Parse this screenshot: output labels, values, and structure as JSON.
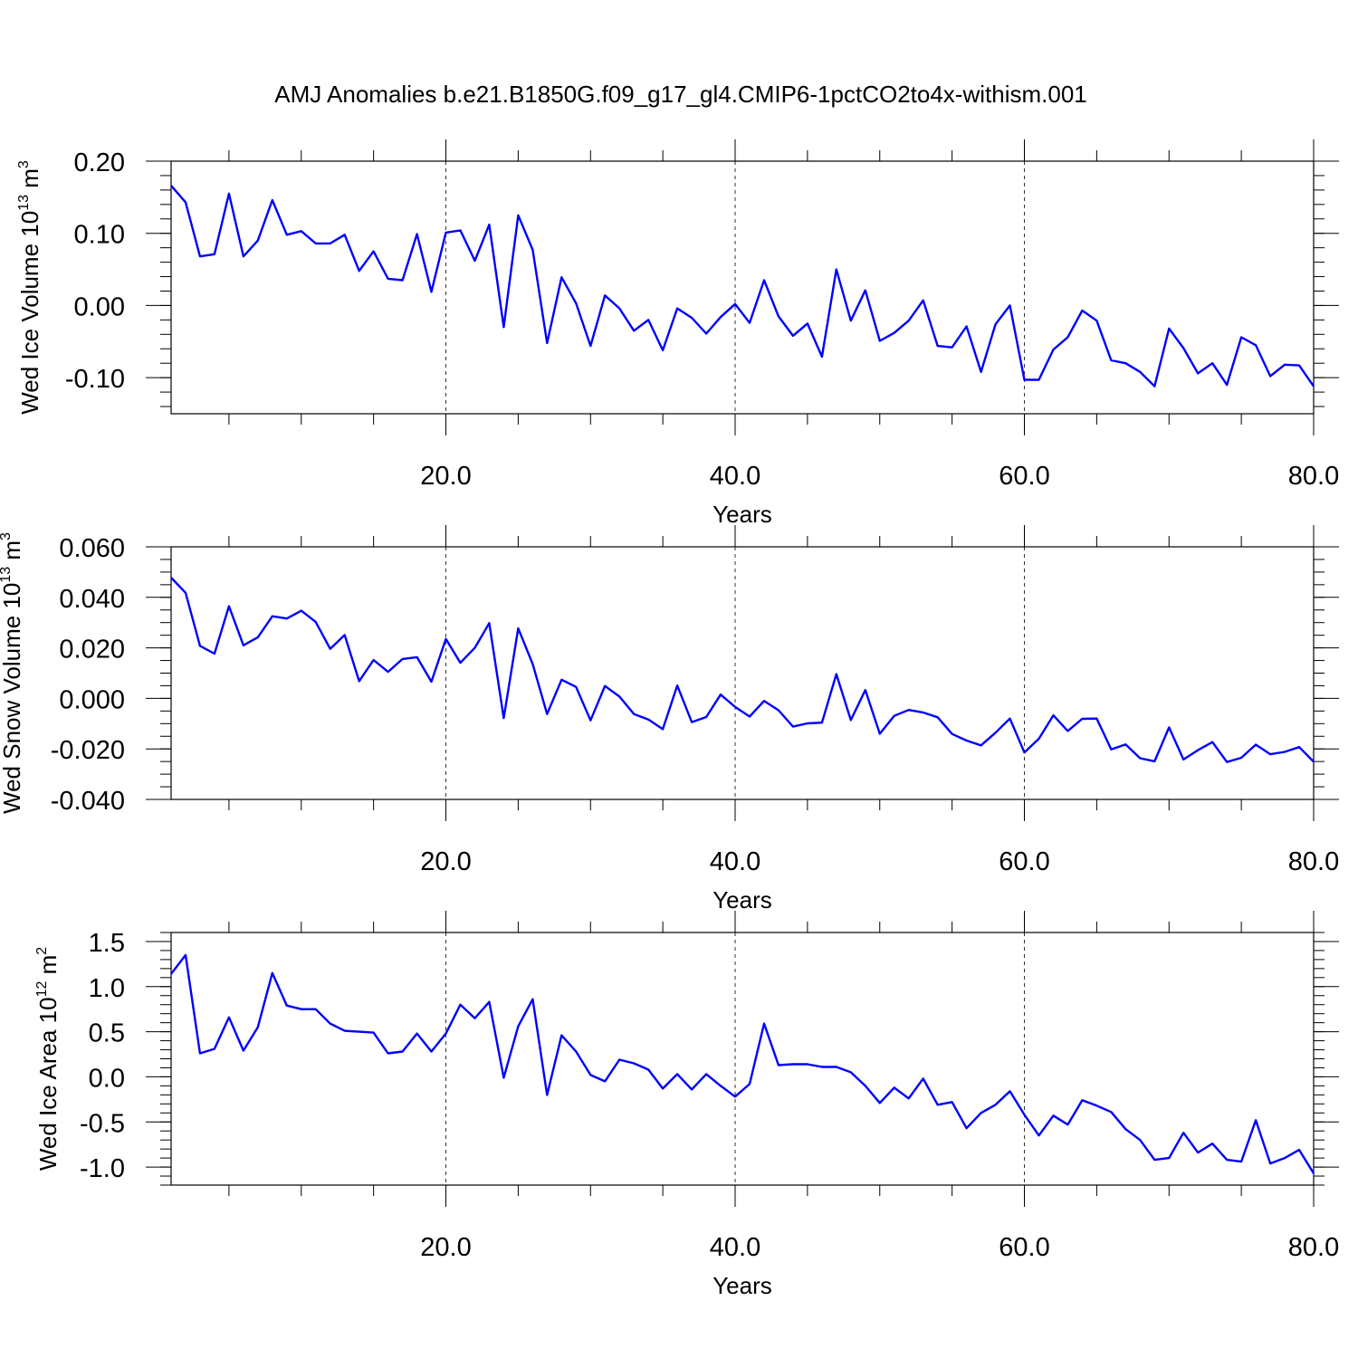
{
  "title": "AMJ Anomalies b.e21.B1850G.f09_g17_gl4.CMIP6-1pctCO2to4x-withism.001",
  "chart_data": [
    {
      "type": "line",
      "ylabel_main": "Wed Ice Volume 10",
      "ylabel_exp": "13",
      "ylabel_unit": " m",
      "ylabel_unit_exp": "3",
      "xlabel": "Years",
      "xlim": [
        1,
        80
      ],
      "ylim": [
        -0.15,
        0.2
      ],
      "xticks": [
        20,
        40,
        60,
        80
      ],
      "xtick_labels": [
        "20.0",
        "40.0",
        "60.0",
        "80.0"
      ],
      "yticks": [
        0.2,
        0.1,
        0.0,
        -0.1
      ],
      "ytick_labels": [
        "0.20",
        "0.10",
        "0.00",
        "-0.10"
      ],
      "yminor_step": 0.02,
      "grid": "dashed vertical at major x ticks",
      "series": [
        {
          "color": "#0000ff",
          "x": [
            1,
            2,
            3,
            4,
            5,
            6,
            7,
            8,
            9,
            10,
            11,
            12,
            13,
            14,
            15,
            16,
            17,
            18,
            19,
            20,
            21,
            22,
            23,
            24,
            25,
            26,
            27,
            28,
            29,
            30,
            31,
            32,
            33,
            34,
            35,
            36,
            37,
            38,
            39,
            40,
            41,
            42,
            43,
            44,
            45,
            46,
            47,
            48,
            49,
            50,
            51,
            52,
            53,
            54,
            55,
            56,
            57,
            58,
            59,
            60,
            61,
            62,
            63,
            64,
            65,
            66,
            67,
            68,
            69,
            70,
            71,
            72,
            73,
            74,
            75,
            76,
            77,
            78,
            79,
            80
          ],
          "values": [
            0.166,
            0.143,
            0.068,
            0.071,
            0.155,
            0.068,
            0.09,
            0.146,
            0.098,
            0.103,
            0.086,
            0.086,
            0.098,
            0.048,
            0.075,
            0.037,
            0.035,
            0.099,
            0.019,
            0.101,
            0.104,
            0.062,
            0.112,
            -0.03,
            0.125,
            0.077,
            -0.052,
            0.039,
            0.003,
            -0.056,
            0.014,
            -0.004,
            -0.035,
            -0.02,
            -0.062,
            -0.004,
            -0.017,
            -0.039,
            -0.016,
            0.002,
            -0.024,
            0.035,
            -0.015,
            -0.042,
            -0.025,
            -0.071,
            0.05,
            -0.021,
            0.021,
            -0.049,
            -0.038,
            -0.021,
            0.007,
            -0.056,
            -0.058,
            -0.029,
            -0.092,
            -0.026,
            0.0,
            -0.103,
            -0.103,
            -0.061,
            -0.044,
            -0.007,
            -0.021,
            -0.076,
            -0.08,
            -0.092,
            -0.112,
            -0.032,
            -0.059,
            -0.094,
            -0.08,
            -0.11,
            -0.044,
            -0.055,
            -0.098,
            -0.082,
            -0.083,
            -0.112
          ]
        }
      ]
    },
    {
      "type": "line",
      "ylabel_main": "Wed Snow Volume 10",
      "ylabel_exp": "13",
      "ylabel_unit": " m",
      "ylabel_unit_exp": "3",
      "xlabel": "Years",
      "xlim": [
        1,
        80
      ],
      "ylim": [
        -0.04,
        0.06
      ],
      "xticks": [
        20,
        40,
        60,
        80
      ],
      "xtick_labels": [
        "20.0",
        "40.0",
        "60.0",
        "80.0"
      ],
      "yticks": [
        0.06,
        0.04,
        0.02,
        0.0,
        -0.02,
        -0.04
      ],
      "ytick_labels": [
        "0.060",
        "0.040",
        "0.020",
        "0.000",
        "-0.020",
        "-0.040"
      ],
      "yminor_step": 0.005,
      "grid": "dashed vertical at major x ticks",
      "series": [
        {
          "color": "#0000ff",
          "x": [
            1,
            2,
            3,
            4,
            5,
            6,
            7,
            8,
            9,
            10,
            11,
            12,
            13,
            14,
            15,
            16,
            17,
            18,
            19,
            20,
            21,
            22,
            23,
            24,
            25,
            26,
            27,
            28,
            29,
            30,
            31,
            32,
            33,
            34,
            35,
            36,
            37,
            38,
            39,
            40,
            41,
            42,
            43,
            44,
            45,
            46,
            47,
            48,
            49,
            50,
            51,
            52,
            53,
            54,
            55,
            56,
            57,
            58,
            59,
            60,
            61,
            62,
            63,
            64,
            65,
            66,
            67,
            68,
            69,
            70,
            71,
            72,
            73,
            74,
            75,
            76,
            77,
            78,
            79,
            80
          ],
          "values": [
            0.0478,
            0.0418,
            0.0208,
            0.0177,
            0.0365,
            0.021,
            0.0242,
            0.0325,
            0.0316,
            0.0347,
            0.0303,
            0.0196,
            0.0251,
            0.0068,
            0.0152,
            0.0105,
            0.0156,
            0.0163,
            0.0066,
            0.0235,
            0.0141,
            0.02,
            0.0298,
            -0.0078,
            0.0277,
            0.0136,
            -0.0062,
            0.0074,
            0.0045,
            -0.0087,
            0.0049,
            0.0007,
            -0.0062,
            -0.0084,
            -0.0122,
            0.0051,
            -0.0094,
            -0.0074,
            0.0015,
            -0.0034,
            -0.0072,
            -0.001,
            -0.0047,
            -0.0112,
            -0.0099,
            -0.0096,
            0.0096,
            -0.0086,
            0.0033,
            -0.014,
            -0.0069,
            -0.0046,
            -0.0056,
            -0.0075,
            -0.0141,
            -0.0167,
            -0.0186,
            -0.0136,
            -0.008,
            -0.0214,
            -0.016,
            -0.0067,
            -0.0129,
            -0.0081,
            -0.008,
            -0.0202,
            -0.0182,
            -0.0237,
            -0.0249,
            -0.0115,
            -0.0242,
            -0.0205,
            -0.0173,
            -0.0252,
            -0.0235,
            -0.0183,
            -0.0221,
            -0.0212,
            -0.0193,
            -0.0251
          ]
        }
      ]
    },
    {
      "type": "line",
      "ylabel_main": "Wed Ice Area 10",
      "ylabel_exp": "12",
      "ylabel_unit": " m",
      "ylabel_unit_exp": "2",
      "xlabel": "Years",
      "xlim": [
        1,
        80
      ],
      "ylim": [
        -1.2,
        1.6
      ],
      "xticks": [
        20,
        40,
        60,
        80
      ],
      "xtick_labels": [
        "20.0",
        "40.0",
        "60.0",
        "80.0"
      ],
      "yticks": [
        1.5,
        1.0,
        0.5,
        0.0,
        -0.5,
        -1.0
      ],
      "ytick_labels": [
        "1.5",
        "1.0",
        "0.5",
        "0.0",
        "-0.5",
        "-1.0"
      ],
      "yminor_step": 0.1,
      "grid": "dashed vertical at major x ticks",
      "series": [
        {
          "color": "#0000ff",
          "x": [
            1,
            2,
            3,
            4,
            5,
            6,
            7,
            8,
            9,
            10,
            11,
            12,
            13,
            14,
            15,
            16,
            17,
            18,
            19,
            20,
            21,
            22,
            23,
            24,
            25,
            26,
            27,
            28,
            29,
            30,
            31,
            32,
            33,
            34,
            35,
            36,
            37,
            38,
            39,
            40,
            41,
            42,
            43,
            44,
            45,
            46,
            47,
            48,
            49,
            50,
            51,
            52,
            53,
            54,
            55,
            56,
            57,
            58,
            59,
            60,
            61,
            62,
            63,
            64,
            65,
            66,
            67,
            68,
            69,
            70,
            71,
            72,
            73,
            74,
            75,
            76,
            77,
            78,
            79,
            80
          ],
          "values": [
            1.14,
            1.35,
            0.26,
            0.31,
            0.66,
            0.29,
            0.55,
            1.15,
            0.79,
            0.75,
            0.75,
            0.59,
            0.51,
            0.5,
            0.49,
            0.26,
            0.28,
            0.48,
            0.28,
            0.48,
            0.8,
            0.65,
            0.83,
            -0.01,
            0.56,
            0.86,
            -0.2,
            0.46,
            0.28,
            0.02,
            -0.05,
            0.19,
            0.15,
            0.08,
            -0.13,
            0.03,
            -0.14,
            0.03,
            -0.1,
            -0.22,
            -0.08,
            0.59,
            0.13,
            0.14,
            0.14,
            0.11,
            0.11,
            0.05,
            -0.1,
            -0.29,
            -0.12,
            -0.24,
            -0.02,
            -0.31,
            -0.28,
            -0.57,
            -0.4,
            -0.31,
            -0.16,
            -0.42,
            -0.65,
            -0.43,
            -0.53,
            -0.26,
            -0.32,
            -0.39,
            -0.58,
            -0.7,
            -0.92,
            -0.9,
            -0.62,
            -0.84,
            -0.74,
            -0.92,
            -0.94,
            -0.48,
            -0.96,
            -0.9,
            -0.81,
            -1.07
          ]
        }
      ]
    }
  ]
}
